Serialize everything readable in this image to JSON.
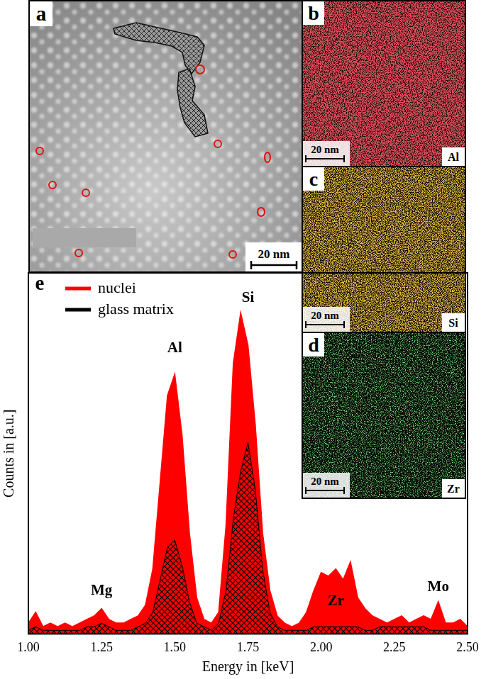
{
  "panels": [
    {
      "label": "a",
      "scale_bar": "20 nm"
    },
    {
      "label": "b",
      "element": "Al",
      "scale_bar": "20 nm",
      "color": "#d0161c"
    },
    {
      "label": "c",
      "element": "Si",
      "scale_bar": "20 nm",
      "color": "#e08a10"
    },
    {
      "label": "d",
      "element": "Zr",
      "scale_bar": "20 nm",
      "color": "#2fbf2f"
    }
  ],
  "chart_data": {
    "type": "line",
    "title": "e",
    "x_label": "Energy in [keV]",
    "y_label": "Counts in [a.u.]",
    "xlim": [
      1.0,
      2.5
    ],
    "xticks": [
      {
        "value": 1.0,
        "label": "1.00"
      },
      {
        "value": 1.25,
        "label": "1.25"
      },
      {
        "value": 1.5,
        "label": "1.50"
      },
      {
        "value": 1.75,
        "label": "1.75"
      },
      {
        "value": 2.0,
        "label": "2.00"
      },
      {
        "value": 2.25,
        "label": "2.25"
      },
      {
        "value": 2.5,
        "label": "2.50"
      }
    ],
    "ylim": [
      0,
      100
    ],
    "tick_labels": "x",
    "grid": false,
    "legend": "upper left",
    "x": [
      1.0,
      1.025,
      1.05,
      1.075,
      1.1,
      1.125,
      1.15,
      1.175,
      1.2,
      1.225,
      1.25,
      1.275,
      1.3,
      1.325,
      1.35,
      1.375,
      1.4,
      1.425,
      1.45,
      1.475,
      1.5,
      1.525,
      1.55,
      1.575,
      1.6,
      1.625,
      1.65,
      1.675,
      1.7,
      1.725,
      1.75,
      1.775,
      1.8,
      1.825,
      1.85,
      1.875,
      1.9,
      1.925,
      1.95,
      1.975,
      2.0,
      2.025,
      2.05,
      2.075,
      2.1,
      2.125,
      2.15,
      2.175,
      2.2,
      2.225,
      2.25,
      2.275,
      2.3,
      2.325,
      2.35,
      2.375,
      2.4,
      2.425,
      2.45,
      2.475,
      2.5
    ],
    "series": [
      {
        "name": "nuclei",
        "color": "#ff0000",
        "values": [
          3,
          6,
          2,
          3,
          2,
          3,
          2,
          3,
          4,
          5,
          7,
          4,
          3,
          3,
          4,
          5,
          8,
          18,
          42,
          66,
          72,
          55,
          28,
          10,
          4,
          3,
          6,
          30,
          75,
          89,
          80,
          58,
          28,
          12,
          5,
          3,
          2,
          3,
          6,
          12,
          17,
          16,
          18,
          15,
          20,
          10,
          7,
          5,
          4,
          3,
          4,
          5,
          3,
          4,
          5,
          4,
          9,
          3,
          3,
          4,
          2
        ]
      },
      {
        "name": "glass matrix",
        "color": "#000000",
        "values": [
          1,
          2,
          1,
          1,
          1,
          1,
          1,
          1,
          2,
          2,
          3,
          2,
          1,
          1,
          1,
          2,
          3,
          6,
          15,
          24,
          26,
          19,
          9,
          3,
          2,
          1,
          3,
          12,
          32,
          45,
          53,
          40,
          18,
          6,
          2,
          1,
          1,
          1,
          1,
          2,
          2,
          2,
          2,
          2,
          2,
          2,
          1,
          1,
          2,
          2,
          2,
          2,
          2,
          2,
          2,
          1,
          1,
          1,
          1,
          1,
          1
        ]
      }
    ],
    "annotations": [
      {
        "text": "Mg",
        "x": 1.25,
        "y": 12
      },
      {
        "text": "Al",
        "x": 1.5,
        "y": 79
      },
      {
        "text": "Si",
        "x": 1.75,
        "y": 93
      },
      {
        "text": "Zr",
        "x": 2.05,
        "y": 9
      },
      {
        "text": "Mo",
        "x": 2.4,
        "y": 13
      }
    ]
  }
}
